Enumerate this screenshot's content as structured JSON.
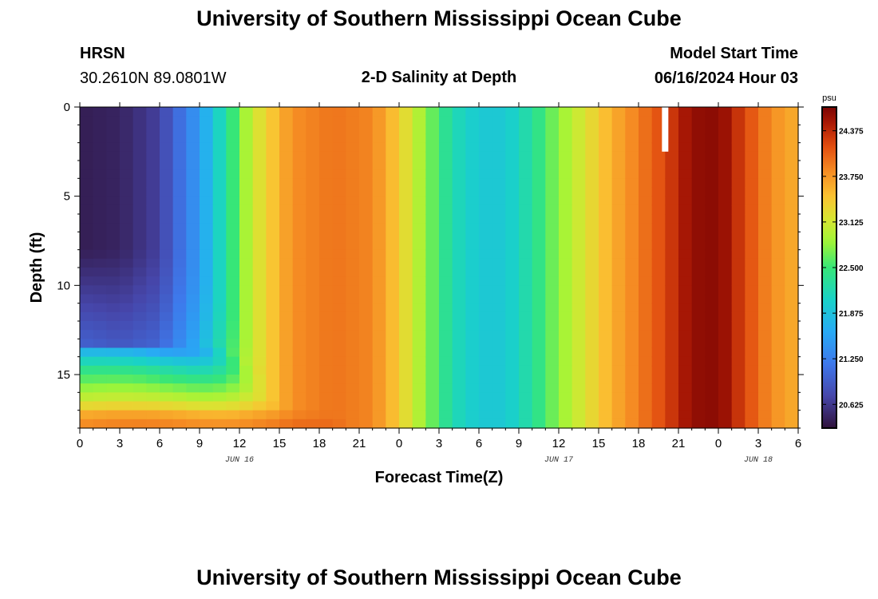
{
  "header": {
    "title": "University of Southern Mississippi Ocean Cube",
    "station": "HRSN",
    "coords": "30.2610N  89.0801W",
    "plot_title": "2-D Salinity at Depth",
    "model_start_label": "Model Start Time",
    "model_start_value": "06/16/2024 Hour 03"
  },
  "footer": {
    "title": "University of Southern Mississippi Ocean Cube"
  },
  "chart_data": {
    "type": "heatmap",
    "title": "2-D Salinity at Depth",
    "xlabel": "Forecast Time(Z)",
    "ylabel": "Depth (ft)",
    "x_hours_range": [
      0,
      54
    ],
    "x_tick_hours": [
      0,
      3,
      6,
      9,
      12,
      15,
      18,
      21,
      24,
      27,
      30,
      33,
      36,
      39,
      42,
      45,
      48,
      51,
      54
    ],
    "x_tick_labels": [
      "0",
      "3",
      "6",
      "9",
      "12",
      "15",
      "18",
      "21",
      "0",
      "3",
      "6",
      "9",
      "12",
      "15",
      "18",
      "21",
      "0",
      "3",
      "6"
    ],
    "date_labels": [
      {
        "hour": 12,
        "text": "JUN 16"
      },
      {
        "hour": 36,
        "text": "JUN 17"
      },
      {
        "hour": 51,
        "text": "JUN 18"
      }
    ],
    "ylim": [
      0,
      18
    ],
    "y_tick_values": [
      0,
      5,
      10,
      15
    ],
    "y_tick_labels": [
      "0",
      "5",
      "10",
      "15"
    ],
    "colorbar": {
      "unit": "psu",
      "range": [
        20.3,
        24.7
      ],
      "tick_values": [
        20.625,
        21.25,
        21.875,
        22.5,
        23.125,
        23.75,
        24.375
      ],
      "tick_labels": [
        "20.625",
        "21.250",
        "21.875",
        "22.500",
        "23.125",
        "23.750",
        "24.375"
      ]
    },
    "surface_salinity_keyframes": [
      {
        "hour": 0,
        "psu": 20.4
      },
      {
        "hour": 3,
        "psu": 20.45
      },
      {
        "hour": 6,
        "psu": 20.7
      },
      {
        "hour": 9,
        "psu": 21.5
      },
      {
        "hour": 11,
        "psu": 22.3
      },
      {
        "hour": 13,
        "psu": 23.1
      },
      {
        "hour": 16,
        "psu": 23.8
      },
      {
        "hour": 19,
        "psu": 23.95
      },
      {
        "hour": 22,
        "psu": 23.85
      },
      {
        "hour": 24,
        "psu": 23.4
      },
      {
        "hour": 26,
        "psu": 22.8
      },
      {
        "hour": 28,
        "psu": 22.2
      },
      {
        "hour": 30,
        "psu": 21.95
      },
      {
        "hour": 32,
        "psu": 21.95
      },
      {
        "hour": 34,
        "psu": 22.3
      },
      {
        "hour": 36,
        "psu": 22.8
      },
      {
        "hour": 38,
        "psu": 23.2
      },
      {
        "hour": 40,
        "psu": 23.6
      },
      {
        "hour": 42,
        "psu": 23.9
      },
      {
        "hour": 44,
        "psu": 24.2
      },
      {
        "hour": 45.5,
        "psu": 24.5
      },
      {
        "hour": 47,
        "psu": 24.65
      },
      {
        "hour": 48.5,
        "psu": 24.55
      },
      {
        "hour": 50,
        "psu": 24.2
      },
      {
        "hour": 52,
        "psu": 23.8
      },
      {
        "hour": 54,
        "psu": 23.6
      }
    ],
    "bottom_layer_salinity": [
      {
        "depth_ft": 13.5,
        "psu": 21.6
      },
      {
        "depth_ft": 14.5,
        "psu": 22.3
      },
      {
        "depth_ft": 15.5,
        "psu": 22.7
      },
      {
        "depth_ft": 16.5,
        "psu": 23.1
      },
      {
        "depth_ft": 17.5,
        "psu": 23.8
      }
    ],
    "missing_data": {
      "hour": 44.0,
      "depth_ft": [
        0,
        2.5
      ]
    }
  }
}
